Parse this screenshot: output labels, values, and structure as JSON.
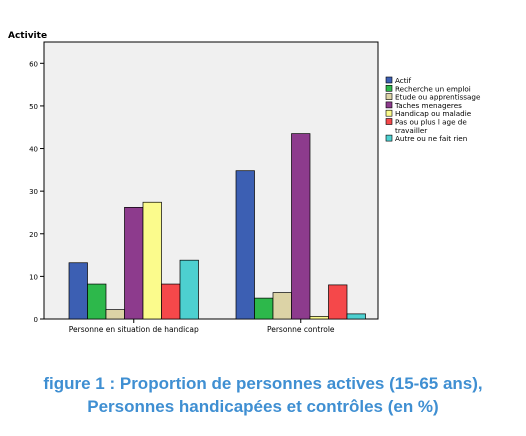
{
  "chart_data": {
    "type": "bar",
    "title": "Activite",
    "xlabel": "",
    "ylabel": "",
    "ylim": [
      0,
      65
    ],
    "yticks": [
      0,
      10,
      20,
      30,
      40,
      50,
      60
    ],
    "grid": false,
    "legend_position": "right",
    "categories": [
      "Personne en situation de handicap",
      "Personne controle"
    ],
    "series": [
      {
        "name": "Actif",
        "color": "#3c5fb3",
        "values": [
          13.2,
          34.8
        ]
      },
      {
        "name": "Recherche un emploi",
        "color": "#2db84b",
        "values": [
          8.2,
          4.9
        ]
      },
      {
        "name": "Etude ou apprentissage",
        "color": "#dcd3a6",
        "values": [
          2.2,
          6.2
        ]
      },
      {
        "name": "Taches menageres",
        "color": "#8d3b8d",
        "values": [
          26.2,
          43.5
        ]
      },
      {
        "name": "Handicap ou maladie",
        "color": "#fbfb8c",
        "values": [
          27.4,
          0.6
        ]
      },
      {
        "name": "Pas ou plus l age de travailler",
        "color": "#f5484a",
        "values": [
          8.2,
          8.0
        ]
      },
      {
        "name": "Autre ou ne fait rien",
        "color": "#4dd0d0",
        "values": [
          13.8,
          1.2
        ]
      }
    ]
  },
  "caption": {
    "line1": "figure 1 : Proportion de personnes actives (15-65 ans),",
    "line2": "Personnes handicapées et contrôles (en %)"
  }
}
